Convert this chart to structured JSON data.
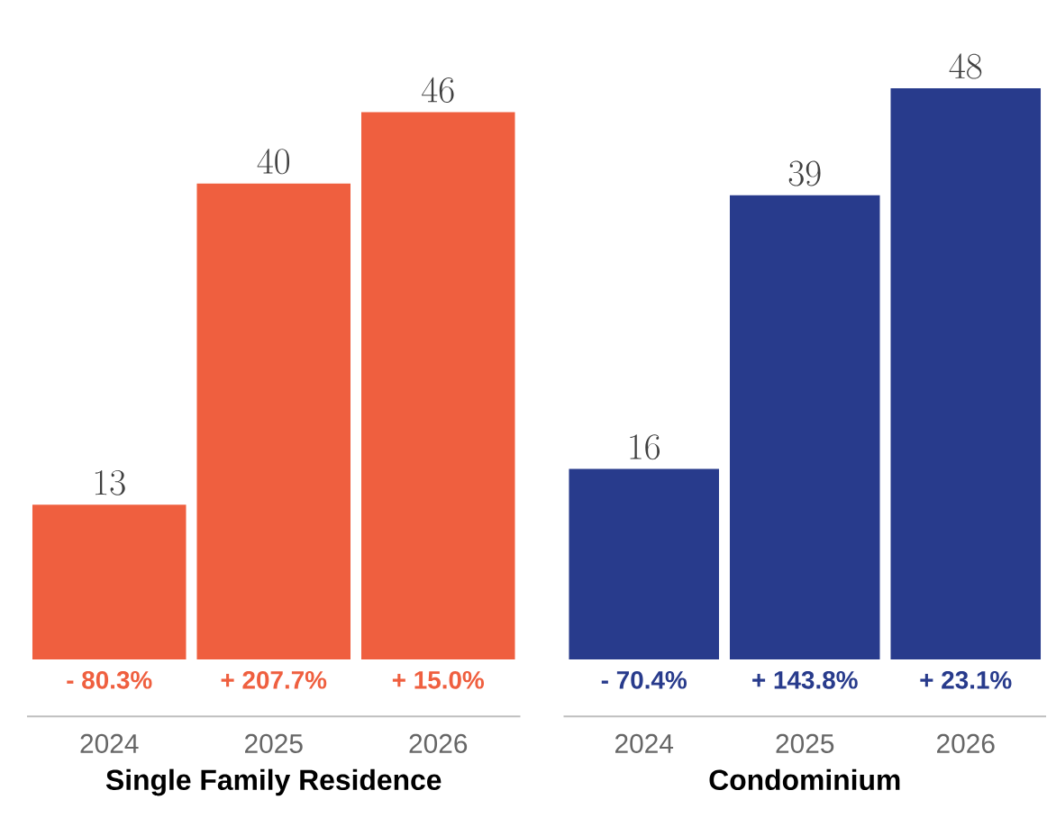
{
  "chart_data": [
    {
      "type": "bar",
      "xlabel": "Single Family Residence",
      "categories": [
        "2024",
        "2025",
        "2026"
      ],
      "values": [
        13,
        40,
        46
      ],
      "color": "#ef5f3f",
      "data_labels": true,
      "annotations": [
        {
          "text": "- 80.3%",
          "x": "2024",
          "y": 0
        },
        {
          "text": "+ 207.7%",
          "x": "2025",
          "y": 0
        },
        {
          "text": "+ 15.0%",
          "x": "2026",
          "y": 0
        }
      ]
    },
    {
      "type": "bar",
      "xlabel": "Condominium",
      "categories": [
        "2024",
        "2025",
        "2026"
      ],
      "values": [
        16,
        39,
        48
      ],
      "color": "#283b8c",
      "data_labels": true,
      "annotations": [
        {
          "text": "- 70.4%",
          "x": "2024",
          "y": 0
        },
        {
          "text": "+ 143.8%",
          "x": "2025",
          "y": 0
        },
        {
          "text": "+ 23.1%",
          "x": "2026",
          "y": 0
        }
      ]
    }
  ]
}
